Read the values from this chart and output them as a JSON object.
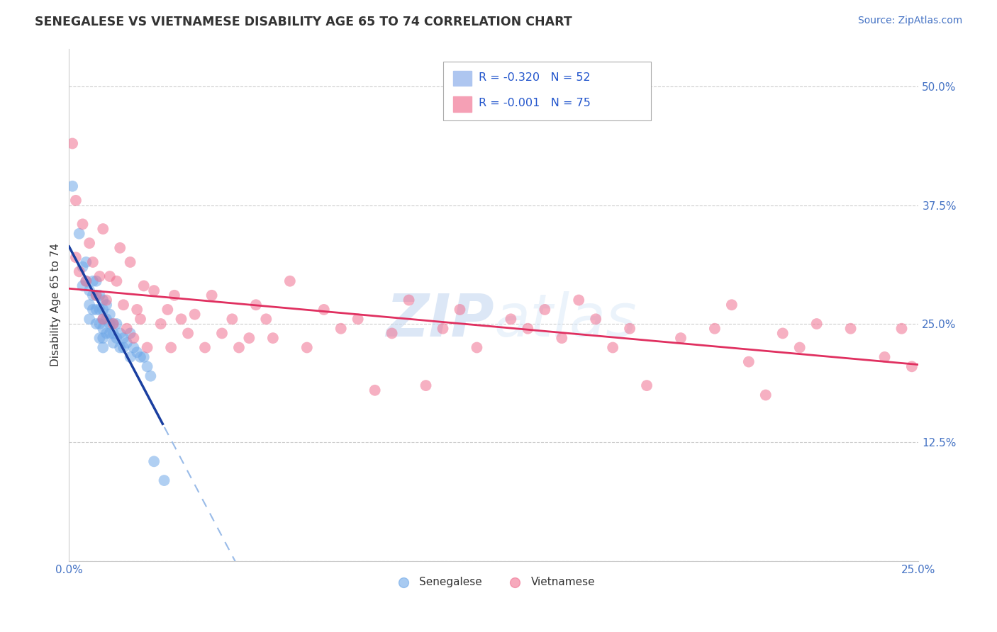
{
  "title": "SENEGALESE VS VIETNAMESE DISABILITY AGE 65 TO 74 CORRELATION CHART",
  "source_text": "Source: ZipAtlas.com",
  "ylabel": "Disability Age 65 to 74",
  "xlim": [
    0.0,
    0.25
  ],
  "ylim": [
    0.0,
    0.54
  ],
  "xticks": [
    0.0,
    0.05,
    0.1,
    0.15,
    0.2,
    0.25
  ],
  "xticklabels": [
    "0.0%",
    "",
    "",
    "",
    "",
    "25.0%"
  ],
  "yticks": [
    0.0,
    0.125,
    0.25,
    0.375,
    0.5
  ],
  "yticklabels": [
    "",
    "12.5%",
    "25.0%",
    "37.5%",
    "50.0%"
  ],
  "blue_scatter_color": "#6fa8e8",
  "pink_scatter_color": "#f07090",
  "blue_line_color": "#1a3fa0",
  "pink_line_color": "#e03060",
  "blue_dash_color": "#99bbe8",
  "ytick_label_color": "#4472c4",
  "xtick_label_color": "#4472c4",
  "watermark_color": "#c8d8f0",
  "legend_box_color": "#aaaaaa",
  "legend_blue_fill": "#aec6f0",
  "legend_pink_fill": "#f5a0b5",
  "legend_text_color": "#2255cc",
  "senegalese_x": [
    0.001,
    0.003,
    0.004,
    0.004,
    0.005,
    0.005,
    0.006,
    0.006,
    0.006,
    0.007,
    0.007,
    0.007,
    0.008,
    0.008,
    0.008,
    0.008,
    0.009,
    0.009,
    0.009,
    0.009,
    0.01,
    0.01,
    0.01,
    0.01,
    0.01,
    0.01,
    0.011,
    0.011,
    0.011,
    0.012,
    0.012,
    0.012,
    0.013,
    0.013,
    0.013,
    0.014,
    0.014,
    0.015,
    0.015,
    0.016,
    0.016,
    0.017,
    0.018,
    0.018,
    0.019,
    0.02,
    0.021,
    0.022,
    0.023,
    0.024,
    0.025,
    0.028
  ],
  "senegalese_y": [
    0.395,
    0.345,
    0.31,
    0.29,
    0.315,
    0.295,
    0.285,
    0.27,
    0.255,
    0.295,
    0.28,
    0.265,
    0.295,
    0.28,
    0.265,
    0.25,
    0.28,
    0.265,
    0.25,
    0.235,
    0.275,
    0.265,
    0.255,
    0.245,
    0.235,
    0.225,
    0.27,
    0.255,
    0.24,
    0.26,
    0.25,
    0.24,
    0.25,
    0.24,
    0.23,
    0.25,
    0.235,
    0.24,
    0.225,
    0.235,
    0.225,
    0.23,
    0.24,
    0.215,
    0.225,
    0.22,
    0.215,
    0.215,
    0.205,
    0.195,
    0.105,
    0.085
  ],
  "vietnamese_x": [
    0.001,
    0.002,
    0.002,
    0.003,
    0.004,
    0.005,
    0.006,
    0.007,
    0.008,
    0.009,
    0.01,
    0.01,
    0.011,
    0.012,
    0.013,
    0.014,
    0.015,
    0.016,
    0.017,
    0.018,
    0.019,
    0.02,
    0.021,
    0.022,
    0.023,
    0.025,
    0.027,
    0.029,
    0.03,
    0.031,
    0.033,
    0.035,
    0.037,
    0.04,
    0.042,
    0.045,
    0.048,
    0.05,
    0.053,
    0.055,
    0.058,
    0.06,
    0.065,
    0.07,
    0.075,
    0.08,
    0.085,
    0.09,
    0.095,
    0.1,
    0.105,
    0.11,
    0.115,
    0.12,
    0.13,
    0.135,
    0.14,
    0.145,
    0.15,
    0.155,
    0.16,
    0.165,
    0.17,
    0.18,
    0.19,
    0.195,
    0.2,
    0.205,
    0.21,
    0.215,
    0.22,
    0.23,
    0.24,
    0.245,
    0.248
  ],
  "vietnamese_y": [
    0.44,
    0.32,
    0.38,
    0.305,
    0.355,
    0.295,
    0.335,
    0.315,
    0.28,
    0.3,
    0.255,
    0.35,
    0.275,
    0.3,
    0.25,
    0.295,
    0.33,
    0.27,
    0.245,
    0.315,
    0.235,
    0.265,
    0.255,
    0.29,
    0.225,
    0.285,
    0.25,
    0.265,
    0.225,
    0.28,
    0.255,
    0.24,
    0.26,
    0.225,
    0.28,
    0.24,
    0.255,
    0.225,
    0.235,
    0.27,
    0.255,
    0.235,
    0.295,
    0.225,
    0.265,
    0.245,
    0.255,
    0.18,
    0.24,
    0.275,
    0.185,
    0.245,
    0.265,
    0.225,
    0.255,
    0.245,
    0.265,
    0.235,
    0.275,
    0.255,
    0.225,
    0.245,
    0.185,
    0.235,
    0.245,
    0.27,
    0.21,
    0.175,
    0.24,
    0.225,
    0.25,
    0.245,
    0.215,
    0.245,
    0.205
  ]
}
